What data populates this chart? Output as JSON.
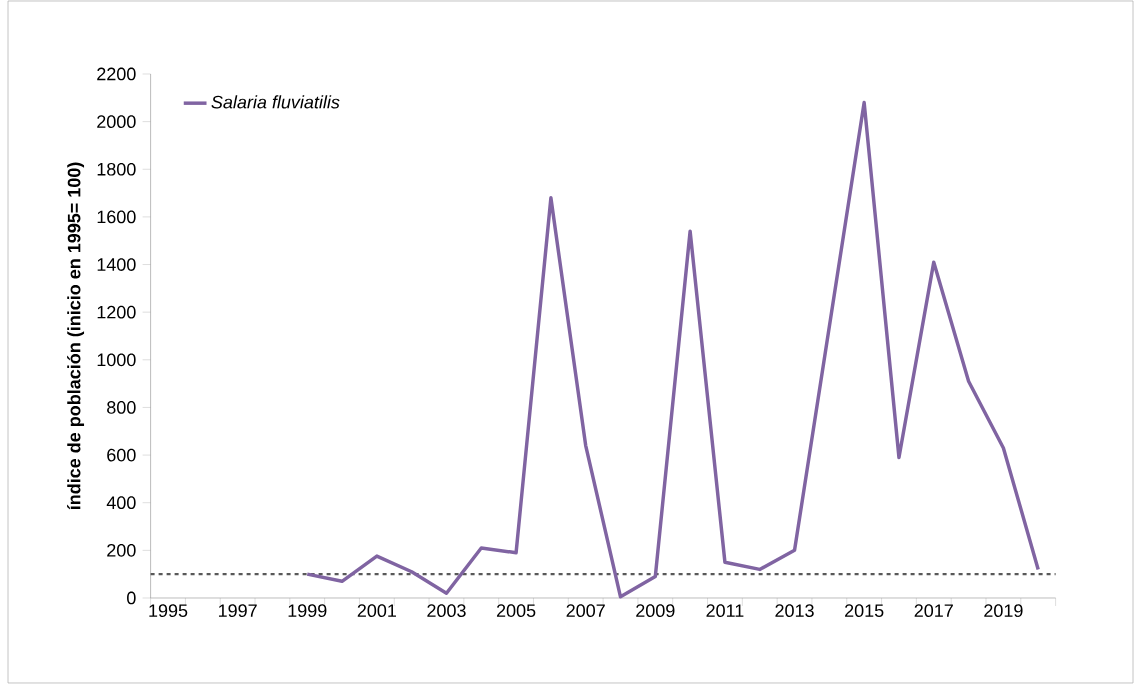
{
  "chart_data": {
    "type": "line",
    "ylabel": "índice de población (inicio en 1995= 100)",
    "categories": [
      "1995",
      null,
      "1997",
      null,
      "1999",
      null,
      "2001",
      null,
      "2003",
      null,
      "2005",
      null,
      "2007",
      null,
      "2009",
      null,
      "2011",
      null,
      "2013",
      null,
      "2015",
      null,
      "2017",
      null,
      "2019",
      null
    ],
    "series": [
      {
        "name": "Salaria fluviatilis",
        "color": "#8064a2",
        "values": [
          null,
          null,
          null,
          null,
          100,
          70,
          176,
          110,
          20,
          210,
          190,
          1680,
          640,
          5,
          90,
          1540,
          150,
          120,
          200,
          1140,
          2080,
          590,
          1410,
          910,
          630,
          120
        ]
      }
    ],
    "ylim": [
      0,
      2200
    ],
    "yticks": [
      0,
      200,
      400,
      600,
      800,
      1000,
      1200,
      1400,
      1600,
      1800,
      2000,
      2200
    ],
    "ref_lines": [
      {
        "axis": "y",
        "value": 100,
        "color": "#595959",
        "line_style": "dashed"
      }
    ],
    "legend": "top left",
    "grid": false,
    "marker": "none",
    "line_style": "solid"
  }
}
